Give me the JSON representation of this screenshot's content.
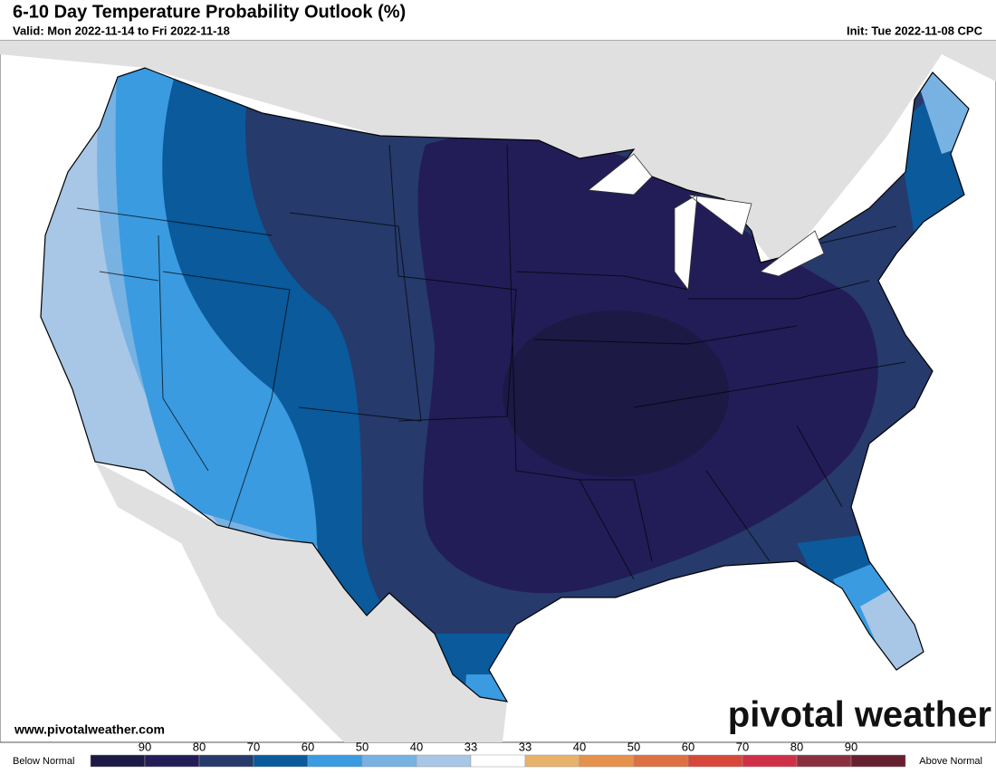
{
  "header": {
    "title": "6-10 Day Temperature Probability Outlook (%)",
    "valid": "Valid: Mon 2022-11-14 to Fri 2022-11-18",
    "init": "Init: Tue 2022-11-08 CPC"
  },
  "footer": {
    "website": "www.pivotalweather.com",
    "logo": "pivotal weather"
  },
  "legend": {
    "below_label": "Below Normal",
    "above_label": "Above Normal",
    "ticks": [
      "90",
      "80",
      "70",
      "60",
      "50",
      "40",
      "33",
      "33",
      "40",
      "50",
      "60",
      "70",
      "80",
      "90"
    ],
    "colors": [
      "#1c1944",
      "#221d57",
      "#263a6b",
      "#0a5a9c",
      "#3a9be0",
      "#78b2e3",
      "#a8c6e6",
      "#ffffff",
      "#e8b26a",
      "#e6924c",
      "#de7042",
      "#d6493a",
      "#cf3048",
      "#8a2f3e",
      "#662030"
    ]
  }
}
